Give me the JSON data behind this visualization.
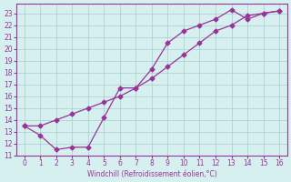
{
  "line1_x": [
    0,
    1,
    2,
    3,
    4,
    5,
    6,
    7,
    8,
    9,
    10,
    11,
    12,
    13,
    14,
    15,
    16
  ],
  "line1_y": [
    13.5,
    12.7,
    11.5,
    11.7,
    11.7,
    14.2,
    16.7,
    16.7,
    18.3,
    20.5,
    21.5,
    22.0,
    22.5,
    23.3,
    22.5,
    23.0,
    23.2
  ],
  "line2_x": [
    0,
    1,
    2,
    3,
    4,
    5,
    6,
    7,
    8,
    9,
    10,
    11,
    12,
    13,
    14,
    15,
    16
  ],
  "line2_y": [
    13.5,
    13.5,
    14.0,
    14.5,
    15.0,
    15.5,
    16.0,
    16.7,
    17.5,
    18.5,
    19.5,
    20.5,
    21.5,
    22.0,
    22.8,
    23.0,
    23.2
  ],
  "xlabel": "Windchill (Refroidissement éolien,°C)",
  "xlim": [
    -0.5,
    16.5
  ],
  "ylim": [
    11,
    23.8
  ],
  "yticks": [
    11,
    12,
    13,
    14,
    15,
    16,
    17,
    18,
    19,
    20,
    21,
    22,
    23
  ],
  "xticks": [
    0,
    1,
    2,
    3,
    4,
    5,
    6,
    7,
    8,
    9,
    10,
    11,
    12,
    13,
    14,
    15,
    16
  ],
  "line_color": "#993399",
  "bg_color": "#d6f0f0",
  "grid_color": "#aacccc"
}
